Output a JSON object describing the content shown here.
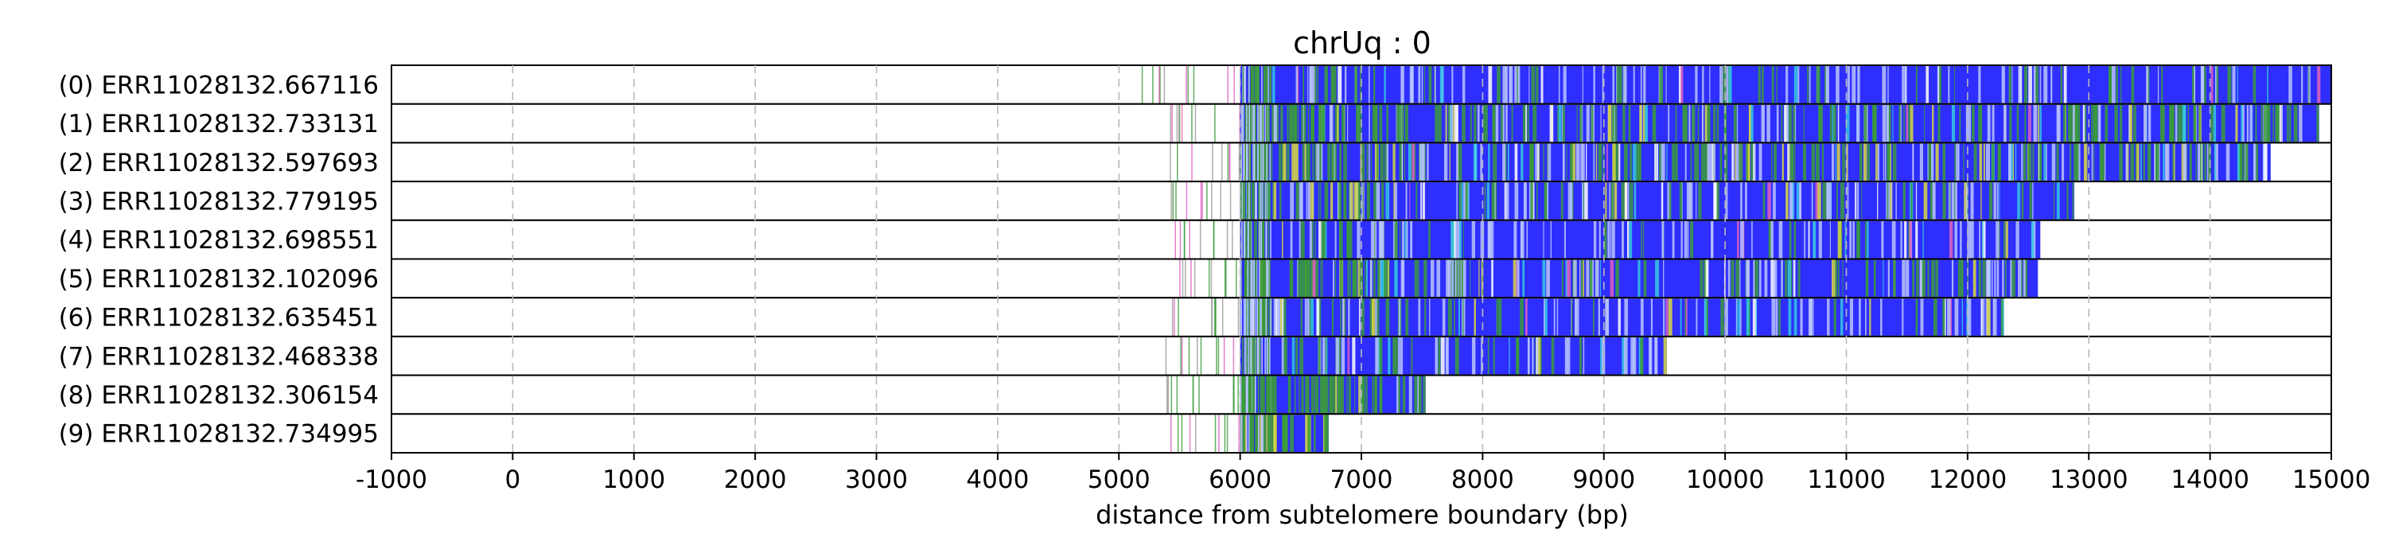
{
  "chart_data": {
    "type": "bar",
    "orientation": "horizontal",
    "title": "chrUq : 0",
    "xlabel": "distance from subtelomere boundary (bp)",
    "ylabel": "",
    "xlim": [
      -1000,
      15000
    ],
    "xticks": [
      "-1000",
      "0",
      "1000",
      "2000",
      "3000",
      "4000",
      "5000",
      "6000",
      "7000",
      "8000",
      "9000",
      "10000",
      "11000",
      "12000",
      "13000",
      "14000",
      "15000"
    ],
    "grid": "vertical dashed",
    "subtelomere_boundary": 6000,
    "track_colors": {
      "main": "#2e2eff",
      "mixed": "#3a9a3a",
      "highlight": "#d8d840",
      "light": "#b8c4ff",
      "cyan": "#33c8e0",
      "pink": "#e060c0"
    },
    "reads": [
      {
        "label": "(0) ERR11028132.667116",
        "start": 6000,
        "end": 15000,
        "prefix_start": 5120,
        "mixed_density": 0.1,
        "highlight_density": 0.0
      },
      {
        "label": "(1) ERR11028132.733131",
        "start": 6000,
        "end": 14900,
        "prefix_start": 5400,
        "mixed_density": 0.35,
        "highlight_density": 0.04
      },
      {
        "label": "(2) ERR11028132.597693",
        "start": 6000,
        "end": 14500,
        "prefix_start": 5380,
        "mixed_density": 0.4,
        "highlight_density": 0.08
      },
      {
        "label": "(3) ERR11028132.779195",
        "start": 6000,
        "end": 12880,
        "prefix_start": 5400,
        "mixed_density": 0.2,
        "highlight_density": 0.04
      },
      {
        "label": "(4) ERR11028132.698551",
        "start": 6000,
        "end": 12600,
        "prefix_start": 5400,
        "mixed_density": 0.12,
        "highlight_density": 0.02
      },
      {
        "label": "(5) ERR11028132.102096",
        "start": 6000,
        "end": 12580,
        "prefix_start": 5450,
        "mixed_density": 0.28,
        "highlight_density": 0.03
      },
      {
        "label": "(6) ERR11028132.635451",
        "start": 6000,
        "end": 12300,
        "prefix_start": 5400,
        "mixed_density": 0.14,
        "highlight_density": 0.02
      },
      {
        "label": "(7) ERR11028132.468338",
        "start": 6000,
        "end": 9520,
        "prefix_start": 5380,
        "mixed_density": 0.12,
        "highlight_density": 0.02
      },
      {
        "label": "(8) ERR11028132.306154",
        "start": 6000,
        "end": 7530,
        "prefix_start": 5380,
        "mixed_density": 0.45,
        "highlight_density": 0.05
      },
      {
        "label": "(9) ERR11028132.734995",
        "start": 6000,
        "end": 6730,
        "prefix_start": 5400,
        "mixed_density": 0.55,
        "highlight_density": 0.1
      }
    ]
  }
}
